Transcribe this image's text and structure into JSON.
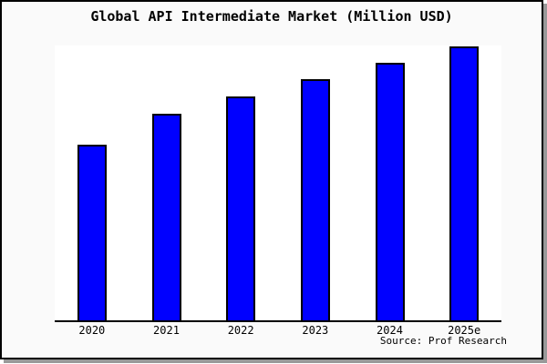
{
  "window": {
    "title": "Global API Intermediate Market (Million USD)",
    "source_note": "Source: Prof Research"
  },
  "chart_data": {
    "type": "bar",
    "title": "Global API Intermediate Market (Million USD)",
    "categories": [
      "2020",
      "2021",
      "2022",
      "2023",
      "2024",
      "2025e"
    ],
    "values": [
      64,
      75.2,
      81.5,
      87.7,
      93.7,
      99.7
    ],
    "values_unit": "percent of plot height (y-axis is unlabeled; steady year-over-year growth, 2025e is estimated max)",
    "xlabel": "",
    "ylabel": "",
    "legend": "none",
    "grid": false,
    "y_axis_ticks": "none shown",
    "source_note": "Source: Prof Research",
    "bar_color": "#0000ff",
    "bar_border_color": "#000000",
    "colors": {
      "window_background": "#fafafa",
      "plot_background": "#ffffff",
      "frame_border": "#000000",
      "axis_line": "#000000",
      "text": "#000000",
      "drop_shadow": "#999999"
    }
  }
}
